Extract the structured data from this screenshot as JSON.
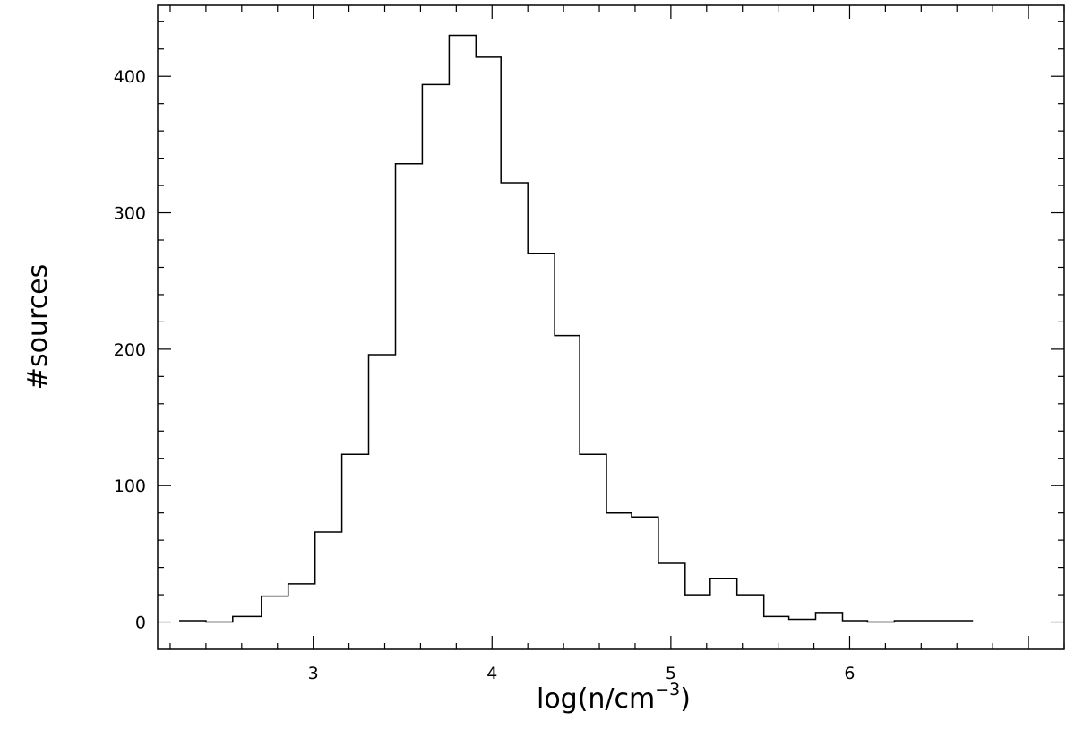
{
  "chart_data": {
    "type": "bar",
    "subtype": "step-histogram",
    "title": "",
    "xlabel": {
      "prefix": "log(n/cm",
      "superscript": "−3",
      "suffix": ")"
    },
    "ylabel": "#sources",
    "xlim": [
      2.13,
      7.2
    ],
    "ylim": [
      -20,
      452
    ],
    "xticks": [
      3,
      4,
      5,
      6
    ],
    "xtick_labels": [
      "3",
      "4",
      "5",
      "6"
    ],
    "yticks": [
      0,
      100,
      200,
      300,
      400
    ],
    "ytick_labels": [
      "0",
      "100",
      "200",
      "300",
      "400"
    ],
    "grid": false,
    "legend": "none",
    "line_color": "#000000",
    "bins": [
      {
        "x0": 2.25,
        "x1": 2.4,
        "count": 1
      },
      {
        "x0": 2.4,
        "x1": 2.55,
        "count": 0
      },
      {
        "x0": 2.55,
        "x1": 2.71,
        "count": 4
      },
      {
        "x0": 2.71,
        "x1": 2.86,
        "count": 19
      },
      {
        "x0": 2.86,
        "x1": 3.01,
        "count": 28
      },
      {
        "x0": 3.01,
        "x1": 3.16,
        "count": 66
      },
      {
        "x0": 3.16,
        "x1": 3.31,
        "count": 123
      },
      {
        "x0": 3.31,
        "x1": 3.46,
        "count": 196
      },
      {
        "x0": 3.46,
        "x1": 3.61,
        "count": 336
      },
      {
        "x0": 3.61,
        "x1": 3.76,
        "count": 394
      },
      {
        "x0": 3.76,
        "x1": 3.91,
        "count": 430
      },
      {
        "x0": 3.91,
        "x1": 4.05,
        "count": 414
      },
      {
        "x0": 4.05,
        "x1": 4.2,
        "count": 322
      },
      {
        "x0": 4.2,
        "x1": 4.35,
        "count": 270
      },
      {
        "x0": 4.35,
        "x1": 4.49,
        "count": 210
      },
      {
        "x0": 4.49,
        "x1": 4.64,
        "count": 123
      },
      {
        "x0": 4.64,
        "x1": 4.78,
        "count": 80
      },
      {
        "x0": 4.78,
        "x1": 4.93,
        "count": 77
      },
      {
        "x0": 4.93,
        "x1": 5.08,
        "count": 43
      },
      {
        "x0": 5.08,
        "x1": 5.22,
        "count": 20
      },
      {
        "x0": 5.22,
        "x1": 5.37,
        "count": 32
      },
      {
        "x0": 5.37,
        "x1": 5.52,
        "count": 20
      },
      {
        "x0": 5.52,
        "x1": 5.66,
        "count": 4
      },
      {
        "x0": 5.66,
        "x1": 5.81,
        "count": 2
      },
      {
        "x0": 5.81,
        "x1": 5.96,
        "count": 7
      },
      {
        "x0": 5.96,
        "x1": 6.1,
        "count": 1
      },
      {
        "x0": 6.1,
        "x1": 6.25,
        "count": 0
      },
      {
        "x0": 6.25,
        "x1": 6.4,
        "count": 1
      },
      {
        "x0": 6.4,
        "x1": 6.55,
        "count": 1
      },
      {
        "x0": 6.55,
        "x1": 6.69,
        "count": 1
      }
    ]
  }
}
